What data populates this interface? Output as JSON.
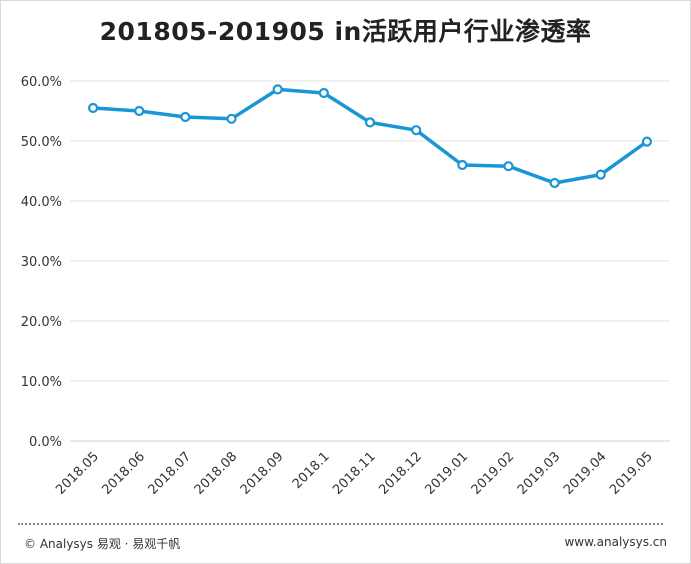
{
  "chart_data": {
    "type": "line",
    "title": "201805-201905 in活跃用户行业渗透率",
    "categories": [
      "2018.05",
      "2018.06",
      "2018.07",
      "2018.08",
      "2018.09",
      "2018.1",
      "2018.11",
      "2018.12",
      "2019.01",
      "2019.02",
      "2019.03",
      "2019.04",
      "2019.05"
    ],
    "series": [
      {
        "values": [
          55.5,
          55.0,
          54.0,
          53.7,
          58.6,
          58.0,
          53.1,
          51.8,
          46.0,
          45.8,
          43.0,
          44.4,
          49.9
        ]
      }
    ],
    "ylim": [
      0,
      60
    ],
    "yticks": [
      "0.0%",
      "10.0%",
      "20.0%",
      "30.0%",
      "40.0%",
      "50.0%",
      "60.0%"
    ],
    "ytick_values": [
      0,
      10,
      20,
      30,
      40,
      50,
      60
    ],
    "grid": true,
    "colors": {
      "line": "#1a96d6",
      "marker_fill": "#ffffff",
      "grid": "#e6e6e6",
      "text": "#333333"
    }
  },
  "footer": {
    "left": "© Analysys 易观 · 易观千帆",
    "right": "www.analysys.cn"
  }
}
